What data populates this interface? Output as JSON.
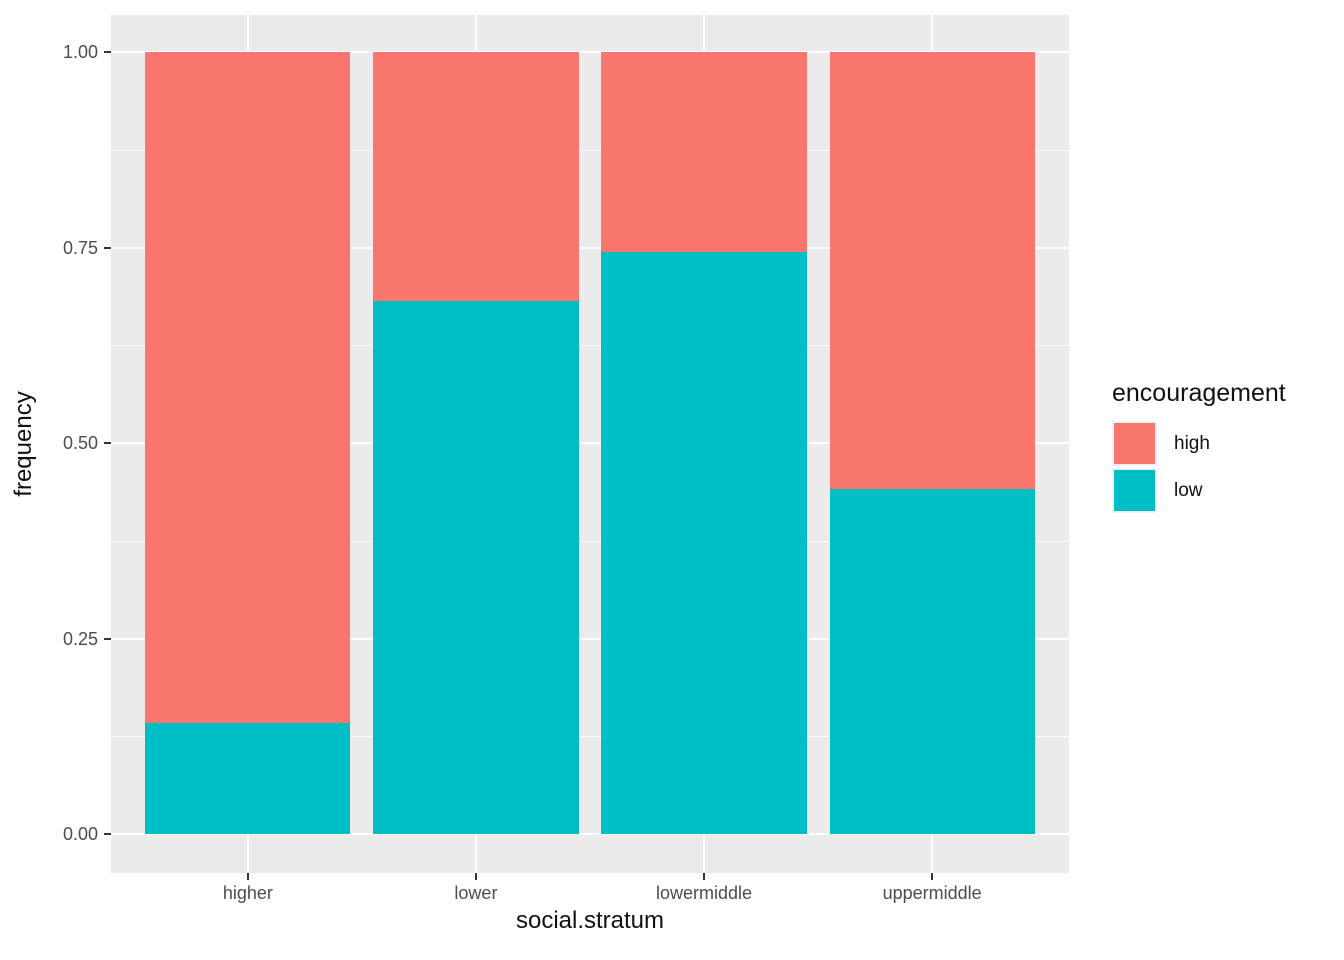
{
  "chart_data": {
    "type": "bar",
    "stacked": true,
    "normalized": true,
    "title": "",
    "xlabel": "social.stratum",
    "ylabel": "frequency",
    "categories": [
      "higher",
      "lower",
      "lowermiddle",
      "uppermiddle"
    ],
    "series": [
      {
        "name": "low",
        "color": "#00BFC4",
        "values": [
          0.142,
          0.682,
          0.745,
          0.441
        ]
      },
      {
        "name": "high",
        "color": "#F8766D",
        "values": [
          0.858,
          0.318,
          0.255,
          0.559
        ]
      }
    ],
    "ylim": [
      0,
      1
    ],
    "y_ticks": [
      "0.00",
      "0.25",
      "0.50",
      "0.75",
      "1.00"
    ],
    "y_tick_values": [
      0,
      0.25,
      0.5,
      0.75,
      1
    ],
    "y_minor_values": [
      0.125,
      0.375,
      0.625,
      0.875
    ],
    "grid": true,
    "legend_position": "right"
  },
  "legend": {
    "title": "encouragement",
    "entries": [
      {
        "label": "high",
        "color": "#F8766D"
      },
      {
        "label": "low",
        "color": "#00BFC4"
      }
    ]
  },
  "colors": {
    "panel_bg": "#EBEBEB",
    "gridline": "#FFFFFF",
    "tick": "#333333",
    "tick_label": "#4D4D4D",
    "axis_title": "#111111",
    "background": "#FFFFFF"
  }
}
